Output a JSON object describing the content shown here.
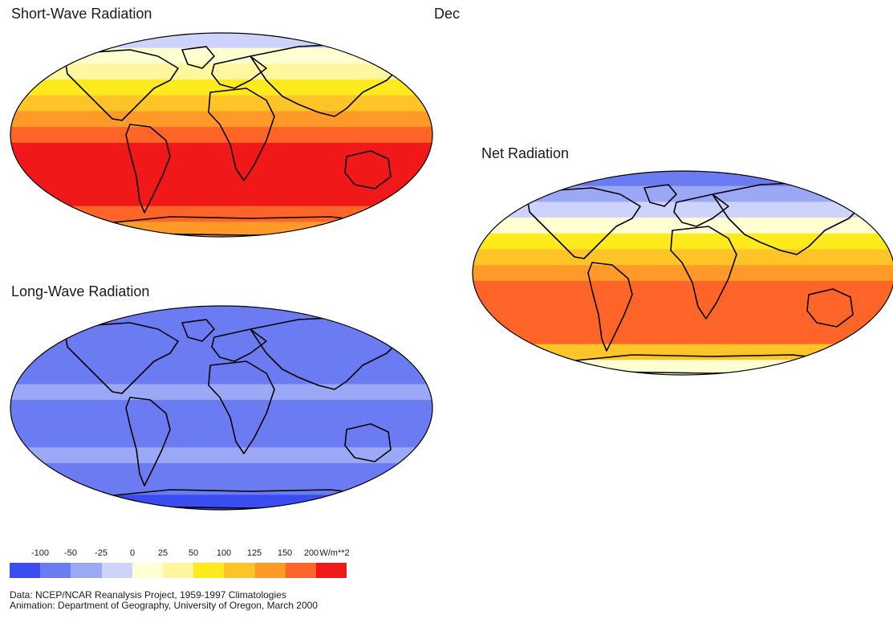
{
  "titles": {
    "short_wave": "Short-Wave Radiation",
    "month": "Dec",
    "net": "Net Radiation",
    "long_wave": "Long-Wave Radiation"
  },
  "legend": {
    "labels": [
      "-100",
      "-50",
      "-25",
      "0",
      "25",
      "50",
      "100",
      "125",
      "150",
      "200",
      "W/m**2"
    ],
    "colors": [
      "#3b4cf0",
      "#6b7cf2",
      "#9aa8f5",
      "#cdd3fa",
      "#ffffd2",
      "#fff7a0",
      "#ffea1e",
      "#ffc428",
      "#ff9a28",
      "#ff6428",
      "#f01818"
    ]
  },
  "credits": {
    "line1": "Data:  NCEP/NCAR Reanalysis Project, 1959-1997 Climatologies",
    "line2": "Animation:  Department of Geography, University of Oregon, March 2000"
  },
  "maps": {
    "short_wave": {
      "bands": [
        "#cdd3fa",
        "#ffffd2",
        "#fff7a0",
        "#ffea1e",
        "#ffc428",
        "#ff9a28",
        "#ff6428",
        "#f01818",
        "#f01818",
        "#f01818",
        "#f01818",
        "#ff6428",
        "#ff9a28"
      ]
    },
    "net": {
      "bands": [
        "#6b7cf2",
        "#9aa8f5",
        "#cdd3fa",
        "#ffffd2",
        "#ffea1e",
        "#ffc428",
        "#ff9a28",
        "#ff6428",
        "#ff6428",
        "#ff6428",
        "#ff6428",
        "#ffc428",
        "#ffffd2"
      ]
    },
    "long_wave": {
      "bands": [
        "#6b7cf2",
        "#6b7cf2",
        "#6b7cf2",
        "#6b7cf2",
        "#6b7cf2",
        "#9aa8f5",
        "#6b7cf2",
        "#6b7cf2",
        "#6b7cf2",
        "#9aa8f5",
        "#6b7cf2",
        "#6b7cf2",
        "#3b4cf0"
      ]
    }
  }
}
